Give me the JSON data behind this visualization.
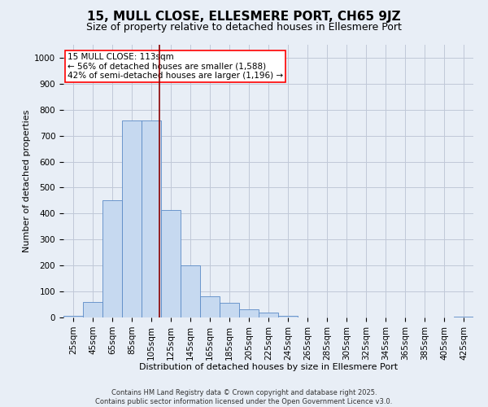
{
  "title": "15, MULL CLOSE, ELLESMERE PORT, CH65 9JZ",
  "subtitle": "Size of property relative to detached houses in Ellesmere Port",
  "xlabel": "Distribution of detached houses by size in Ellesmere Port",
  "ylabel": "Number of detached properties",
  "footnote": "Contains HM Land Registry data © Crown copyright and database right 2025.\nContains public sector information licensed under the Open Government Licence v3.0.",
  "bar_categories": [
    "25sqm",
    "45sqm",
    "65sqm",
    "85sqm",
    "105sqm",
    "125sqm",
    "145sqm",
    "165sqm",
    "185sqm",
    "205sqm",
    "225sqm",
    "245sqm",
    "265sqm",
    "285sqm",
    "305sqm",
    "325sqm",
    "345sqm",
    "365sqm",
    "385sqm",
    "405sqm",
    "425sqm"
  ],
  "bar_values": [
    5,
    60,
    450,
    760,
    760,
    415,
    200,
    80,
    55,
    30,
    20,
    5,
    0,
    0,
    0,
    0,
    0,
    0,
    0,
    0,
    3
  ],
  "bar_color": "#c6d9f0",
  "bar_edge_color": "#5a8ac6",
  "grid_color": "#c0c8d8",
  "background_color": "#e8eef6",
  "vline_color": "#8b0000",
  "annotation_text": "15 MULL CLOSE: 113sqm\n← 56% of detached houses are smaller (1,588)\n42% of semi-detached houses are larger (1,196) →",
  "annotation_box_color": "white",
  "annotation_box_edge_color": "red",
  "ylim_max": 1050,
  "yticks": [
    0,
    100,
    200,
    300,
    400,
    500,
    600,
    700,
    800,
    900,
    1000
  ],
  "title_fontsize": 11,
  "subtitle_fontsize": 9,
  "axis_label_fontsize": 8,
  "tick_fontsize": 7.5,
  "annotation_fontsize": 7.5,
  "footnote_fontsize": 6
}
